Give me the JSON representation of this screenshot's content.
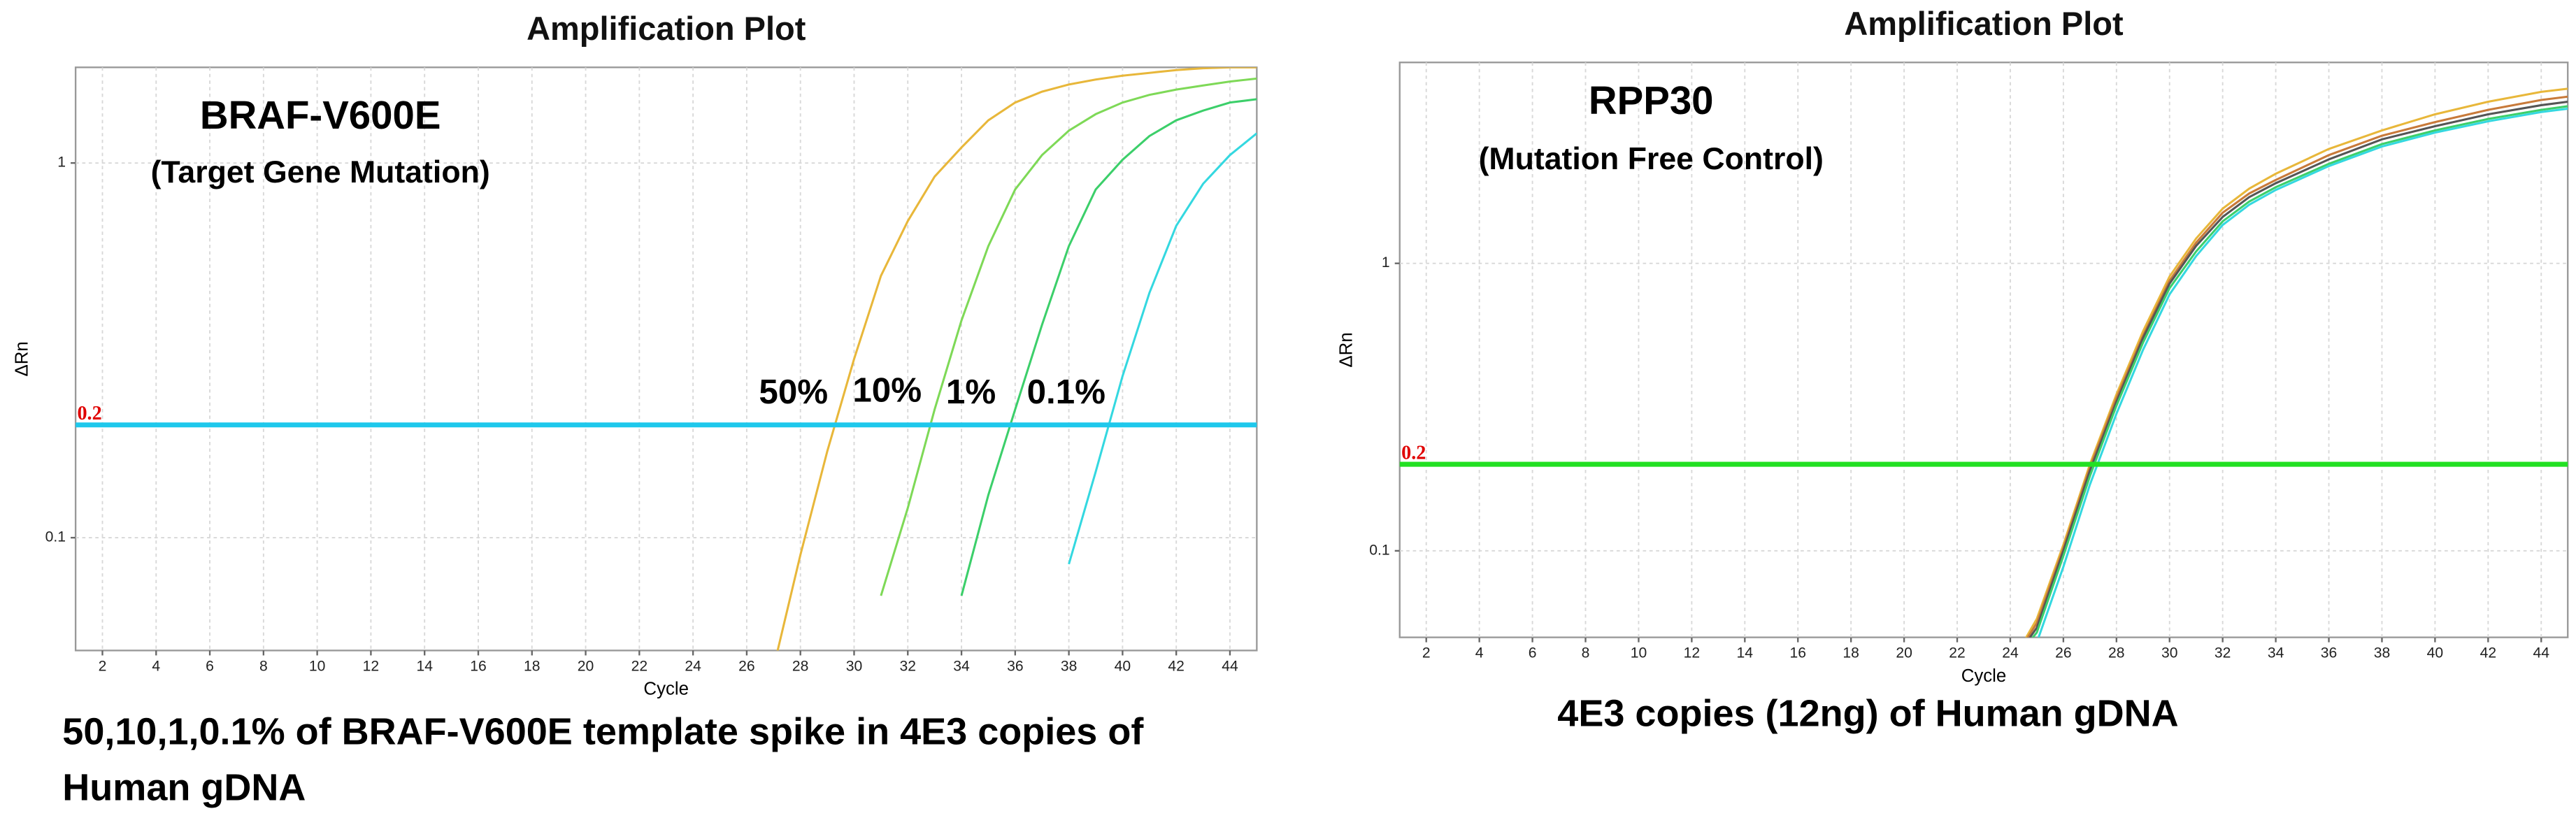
{
  "chart_data": [
    {
      "type": "line",
      "title": "Amplification Plot",
      "xlabel": "Cycle",
      "ylabel": "ΔRn",
      "log_y": true,
      "grid": true,
      "xlim": [
        1,
        45
      ],
      "xticks": [
        2,
        4,
        6,
        8,
        10,
        12,
        14,
        16,
        18,
        20,
        22,
        24,
        26,
        28,
        30,
        32,
        34,
        36,
        38,
        40,
        42,
        44
      ],
      "ylim": [
        0.05,
        1.8
      ],
      "yticks": [
        0.1,
        1
      ],
      "threshold": 0.2,
      "threshold_color": "#1ec8ec",
      "annotations": [
        "BRAF-V600E",
        "(Target Gene Mutation)"
      ],
      "curve_labels": [
        "50%",
        "10%",
        "1%",
        "0.1%"
      ],
      "caption": [
        "50,10,1,0.1% of BRAF-V600E template spike in 4E3 copies of",
        "Human gDNA"
      ],
      "x": [
        27,
        28,
        29,
        30,
        31,
        32,
        33,
        34,
        35,
        36,
        37,
        38,
        39,
        40,
        41,
        42,
        43,
        44,
        45
      ],
      "series": [
        {
          "color": "#e8b73a",
          "values": [
            0.045,
            0.09,
            0.17,
            0.3,
            0.5,
            0.7,
            0.92,
            1.1,
            1.3,
            1.45,
            1.55,
            1.62,
            1.67,
            1.71,
            1.74,
            1.77,
            1.79,
            1.8,
            1.8
          ]
        },
        {
          "color": "#7ed957",
          "values": [
            null,
            null,
            null,
            null,
            0.07,
            0.12,
            0.22,
            0.38,
            0.6,
            0.85,
            1.05,
            1.22,
            1.35,
            1.45,
            1.52,
            1.57,
            1.61,
            1.65,
            1.68
          ]
        },
        {
          "color": "#3ccf6a",
          "values": [
            null,
            null,
            null,
            null,
            null,
            null,
            null,
            0.07,
            0.13,
            0.22,
            0.37,
            0.6,
            0.85,
            1.02,
            1.18,
            1.3,
            1.38,
            1.45,
            1.48
          ]
        },
        {
          "color": "#34d8e0",
          "values": [
            null,
            null,
            null,
            null,
            null,
            null,
            null,
            null,
            null,
            null,
            null,
            0.085,
            0.15,
            0.27,
            0.45,
            0.68,
            0.88,
            1.05,
            1.2
          ]
        }
      ]
    },
    {
      "type": "line",
      "title": "Amplification Plot",
      "xlabel": "Cycle",
      "ylabel": "ΔRn",
      "log_y": true,
      "grid": true,
      "xlim": [
        1,
        45
      ],
      "xticks": [
        2,
        4,
        6,
        8,
        10,
        12,
        14,
        16,
        18,
        20,
        22,
        24,
        26,
        28,
        30,
        32,
        34,
        36,
        38,
        40,
        42,
        44
      ],
      "ylim": [
        0.05,
        5
      ],
      "yticks": [
        0.1,
        1
      ],
      "threshold": 0.2,
      "threshold_color": "#22e022",
      "annotations": [
        "RPP30",
        "(Mutation Free Control)"
      ],
      "caption": [
        "4E3 copies (12ng) of Human gDNA"
      ],
      "x": [
        24,
        25,
        26,
        27,
        28,
        29,
        30,
        31,
        32,
        33,
        34,
        36,
        38,
        40,
        42,
        44,
        45
      ],
      "series": [
        {
          "color": "#e8b73a",
          "values": [
            0.04,
            0.058,
            0.105,
            0.2,
            0.35,
            0.58,
            0.9,
            1.22,
            1.55,
            1.82,
            2.05,
            2.5,
            2.9,
            3.3,
            3.65,
            3.95,
            4.05
          ]
        },
        {
          "color": "#c87a3a",
          "values": [
            0.04,
            0.056,
            0.102,
            0.195,
            0.34,
            0.56,
            0.87,
            1.18,
            1.5,
            1.75,
            1.95,
            2.38,
            2.78,
            3.1,
            3.42,
            3.7,
            3.8
          ]
        },
        {
          "color": "#555555",
          "values": [
            0.04,
            0.054,
            0.1,
            0.19,
            0.33,
            0.55,
            0.85,
            1.15,
            1.45,
            1.7,
            1.9,
            2.3,
            2.7,
            3.0,
            3.3,
            3.55,
            3.65
          ]
        },
        {
          "color": "#3ccf6a",
          "values": [
            0.04,
            0.052,
            0.096,
            0.182,
            0.32,
            0.53,
            0.82,
            1.1,
            1.4,
            1.64,
            1.84,
            2.22,
            2.6,
            2.9,
            3.18,
            3.42,
            3.52
          ]
        },
        {
          "color": "#34d8e0",
          "values": [
            0.038,
            0.048,
            0.088,
            0.17,
            0.3,
            0.5,
            0.78,
            1.06,
            1.36,
            1.6,
            1.8,
            2.18,
            2.55,
            2.85,
            3.12,
            3.36,
            3.45
          ]
        }
      ]
    }
  ]
}
